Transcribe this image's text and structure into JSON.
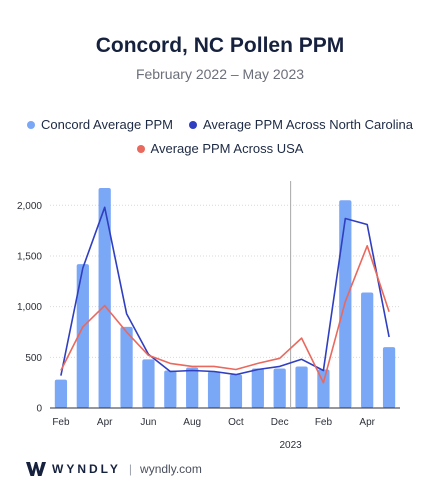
{
  "brand": {
    "name": "WYNDLY",
    "separator": "|",
    "url": "wyndly.com"
  },
  "colors": {
    "bars": "#7ba7f7",
    "nc_line": "#2f3fbf",
    "usa_line": "#e9695e",
    "grid": "#d9d9d9",
    "axis": "#2b2f38",
    "divider": "#a7a7a7"
  },
  "chart_data": {
    "type": "bar",
    "title": "Concord, NC Pollen PPM",
    "subtitle": "February 2022 – May 2023",
    "categories": [
      "Feb 2022",
      "Mar 2022",
      "Apr 2022",
      "May 2022",
      "Jun 2022",
      "Jul 2022",
      "Aug 2022",
      "Sep 2022",
      "Oct 2022",
      "Nov 2022",
      "Dec 2022",
      "Jan 2023",
      "Feb 2023",
      "Mar 2023",
      "Apr 2023",
      "May 2023"
    ],
    "tick_labels": [
      "Feb",
      "",
      "Apr",
      "",
      "Jun",
      "",
      "Aug",
      "",
      "Oct",
      "",
      "Dec",
      "",
      "Feb",
      "",
      "Apr",
      ""
    ],
    "year_label": "2023",
    "year_divider_after_index": 10,
    "ylim": [
      0,
      2200
    ],
    "yticks": [
      0,
      500,
      1000,
      1500,
      2000
    ],
    "ytick_labels": [
      "0",
      "500",
      "1,000",
      "1,500",
      "2,000"
    ],
    "grid": true,
    "legend_placement": "top",
    "series": [
      {
        "name": "Concord Average PPM",
        "kind": "bar",
        "values": [
          280,
          1420,
          2170,
          800,
          480,
          370,
          400,
          360,
          330,
          390,
          390,
          410,
          380,
          2050,
          1140,
          600
        ]
      },
      {
        "name": "Average PPM Across North Carolina",
        "kind": "line",
        "values": [
          320,
          1380,
          1980,
          930,
          530,
          360,
          370,
          360,
          330,
          380,
          410,
          480,
          370,
          1870,
          1810,
          700
        ]
      },
      {
        "name": "Average PPM Across USA",
        "kind": "line",
        "values": [
          370,
          800,
          1010,
          750,
          520,
          440,
          410,
          410,
          380,
          440,
          490,
          690,
          250,
          1050,
          1600,
          950
        ]
      }
    ]
  }
}
